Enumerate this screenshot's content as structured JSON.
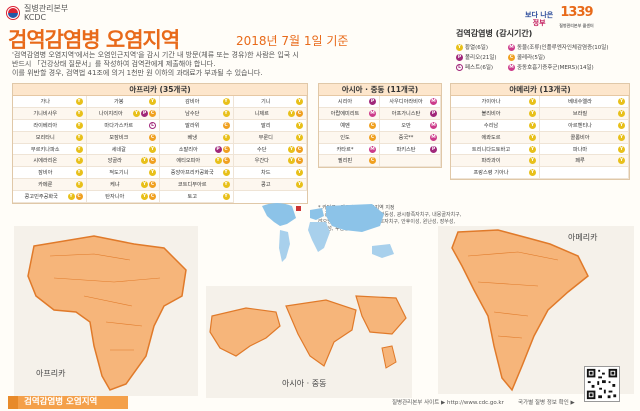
{
  "header": {
    "org_name_ko": "질병관리본부",
    "org_name_en": "KCDC",
    "title": "검역감염병 오염지역",
    "date": "2018년 7월 1일 기준",
    "paragraph": [
      "'검역감염병 오염지역'에서는 오염인근지역'을 감시 기간 내  방문(체류 또는 경유)한 사람은 입국 시",
      "반드시 「건강상태 질문서」를 작성하여 검역관에게 제출해야 합니다.",
      "이를 위반할 경우, 검역법 41조에 의거 1천만 원 이하의 과태료가 부과될 수 있습니다."
    ]
  },
  "brand": {
    "slogan_line1": "보다 나은",
    "slogan_line2": "정부",
    "hotline": "1339",
    "hotline_caption": "질병관리본부 콜센터"
  },
  "legend": {
    "title": "검역감염병 (감시기간)",
    "items": [
      {
        "code": "Y",
        "label": "황열(6일)"
      },
      {
        "code": "M",
        "label": "동물(조류)인플루엔자인체감염증(10일)"
      },
      {
        "code": "P",
        "label": "폴리오(21일)"
      },
      {
        "code": "C",
        "label": "콜레라(5일)"
      },
      {
        "code": "L",
        "label": "페스트(6일)"
      },
      {
        "code": "M",
        "label": "중동호흡기증후군(MERS)(14일)"
      }
    ]
  },
  "africa": {
    "title": "아프리카 (35개국)",
    "cells": [
      {
        "name": "가나",
        "badges": [
          "Y"
        ]
      },
      {
        "name": "가봉",
        "badges": [
          "Y"
        ]
      },
      {
        "name": "감비아",
        "badges": [
          "Y"
        ]
      },
      {
        "name": "기니",
        "badges": [
          "Y"
        ]
      },
      {
        "name": "기니비사우",
        "badges": [
          "Y"
        ]
      },
      {
        "name": "나이지리아",
        "badges": [
          "Y",
          "P",
          "C"
        ]
      },
      {
        "name": "남수단",
        "badges": [
          "Y"
        ]
      },
      {
        "name": "니제르",
        "badges": [
          "Y",
          "C"
        ]
      },
      {
        "name": "라이베리아",
        "badges": [
          "Y"
        ]
      },
      {
        "name": "마다가스카르",
        "badges": [
          "L"
        ]
      },
      {
        "name": "말라위",
        "badges": [
          "C"
        ]
      },
      {
        "name": "말리",
        "badges": [
          "Y"
        ]
      },
      {
        "name": "모리타니",
        "badges": [
          "Y"
        ]
      },
      {
        "name": "모잠비크",
        "badges": [
          "C"
        ]
      },
      {
        "name": "베냉",
        "badges": [
          "Y"
        ]
      },
      {
        "name": "부룬디",
        "badges": [
          "Y"
        ]
      },
      {
        "name": "부르키나파소",
        "badges": [
          "Y"
        ]
      },
      {
        "name": "세네갈",
        "badges": [
          "Y"
        ]
      },
      {
        "name": "소말리아",
        "badges": [
          "P",
          "C"
        ]
      },
      {
        "name": "수단",
        "badges": [
          "Y",
          "C"
        ]
      },
      {
        "name": "시에라리온",
        "badges": [
          "Y"
        ]
      },
      {
        "name": "앙골라",
        "badges": [
          "Y",
          "C"
        ]
      },
      {
        "name": "에티오피아",
        "badges": [
          "Y",
          "C"
        ]
      },
      {
        "name": "우간다",
        "badges": [
          "Y",
          "C"
        ]
      },
      {
        "name": "잠비아",
        "badges": [
          "Y"
        ]
      },
      {
        "name": "적도기니",
        "badges": [
          "Y"
        ]
      },
      {
        "name": "중앙아프리카공화국",
        "badges": [
          "Y"
        ]
      },
      {
        "name": "차드",
        "badges": [
          "Y"
        ]
      },
      {
        "name": "카메룬",
        "badges": [
          "Y"
        ]
      },
      {
        "name": "케냐",
        "badges": [
          "Y",
          "C"
        ]
      },
      {
        "name": "코트디부아르",
        "badges": [
          "Y"
        ]
      },
      {
        "name": "콩고",
        "badges": [
          "Y"
        ]
      },
      {
        "name": "콩고민주공화국",
        "badges": [
          "Y",
          "C"
        ]
      },
      {
        "name": "탄자니아",
        "badges": [
          "Y",
          "C"
        ]
      },
      {
        "name": "토고",
        "badges": [
          "Y"
        ]
      }
    ]
  },
  "asia": {
    "title": "아시아 · 중동 (11개국)",
    "cells": [
      {
        "name": "시리아",
        "badges": [
          "P"
        ]
      },
      {
        "name": "사우디아라비아",
        "badges": [
          "M"
        ]
      },
      {
        "name": "아랍에미리트",
        "badges": [
          "M"
        ]
      },
      {
        "name": "아프가니스탄",
        "badges": [
          "P"
        ]
      },
      {
        "name": "예멘",
        "badges": [
          "C"
        ]
      },
      {
        "name": "오만",
        "badges": [
          "M"
        ]
      },
      {
        "name": "인도",
        "badges": [
          "C"
        ]
      },
      {
        "name": "중국**",
        "badges": [
          "M"
        ]
      },
      {
        "name": "카타르*",
        "badges": [
          "M"
        ]
      },
      {
        "name": "파키스탄",
        "badges": [
          "P"
        ]
      },
      {
        "name": "필리핀",
        "badges": [
          "C"
        ]
      },
      {
        "name": "",
        "badges": []
      }
    ],
    "notes": [
      "* 카타르 : 메르스 오염인근지역 지정",
      "** 중국 11개 성(省) 시(市): 광둥성, 광시좡족자치구, 내몽골자치구,",
      "   랴오닝성, 베이징시, 신장위구르자치구, 안후이성, 윈난성, 장쑤성,",
      "   푸젠성, 후난성"
    ]
  },
  "america": {
    "title": "아메리카 (13개국)",
    "cells": [
      {
        "name": "가이아나",
        "badges": [
          "Y"
        ]
      },
      {
        "name": "베네수엘라",
        "badges": [
          "Y"
        ]
      },
      {
        "name": "볼리비아",
        "badges": [
          "Y"
        ]
      },
      {
        "name": "브라질",
        "badges": [
          "Y"
        ]
      },
      {
        "name": "수리남",
        "badges": [
          "Y"
        ]
      },
      {
        "name": "아르헨티나",
        "badges": [
          "Y"
        ]
      },
      {
        "name": "에콰도르",
        "badges": [
          "Y"
        ]
      },
      {
        "name": "콜롬비아",
        "badges": [
          "Y"
        ]
      },
      {
        "name": "트리니다드토바고",
        "badges": [
          "Y"
        ]
      },
      {
        "name": "파나마",
        "badges": [
          "Y"
        ]
      },
      {
        "name": "파라과이",
        "badges": [
          "Y"
        ]
      },
      {
        "name": "페루",
        "badges": [
          "Y"
        ]
      },
      {
        "name": "프랑스령 기아나",
        "badges": [
          "Y"
        ]
      },
      {
        "name": "",
        "badges": []
      }
    ]
  },
  "maps": {
    "africa_label": "아프리카",
    "asia_label": "아시아 · 중동",
    "america_label": "아메리카"
  },
  "footer": {
    "label": "검역감염병 오염지역",
    "link_text": "질병관리본부 사이트 ▶ http://www.cdc.go.kr",
    "link2_text": "국가별 질병 정보 확인 ▶"
  },
  "colors": {
    "accent": "#e86a1a",
    "map_fill": "#f6b57a",
    "map_stroke": "#e07a2a"
  }
}
